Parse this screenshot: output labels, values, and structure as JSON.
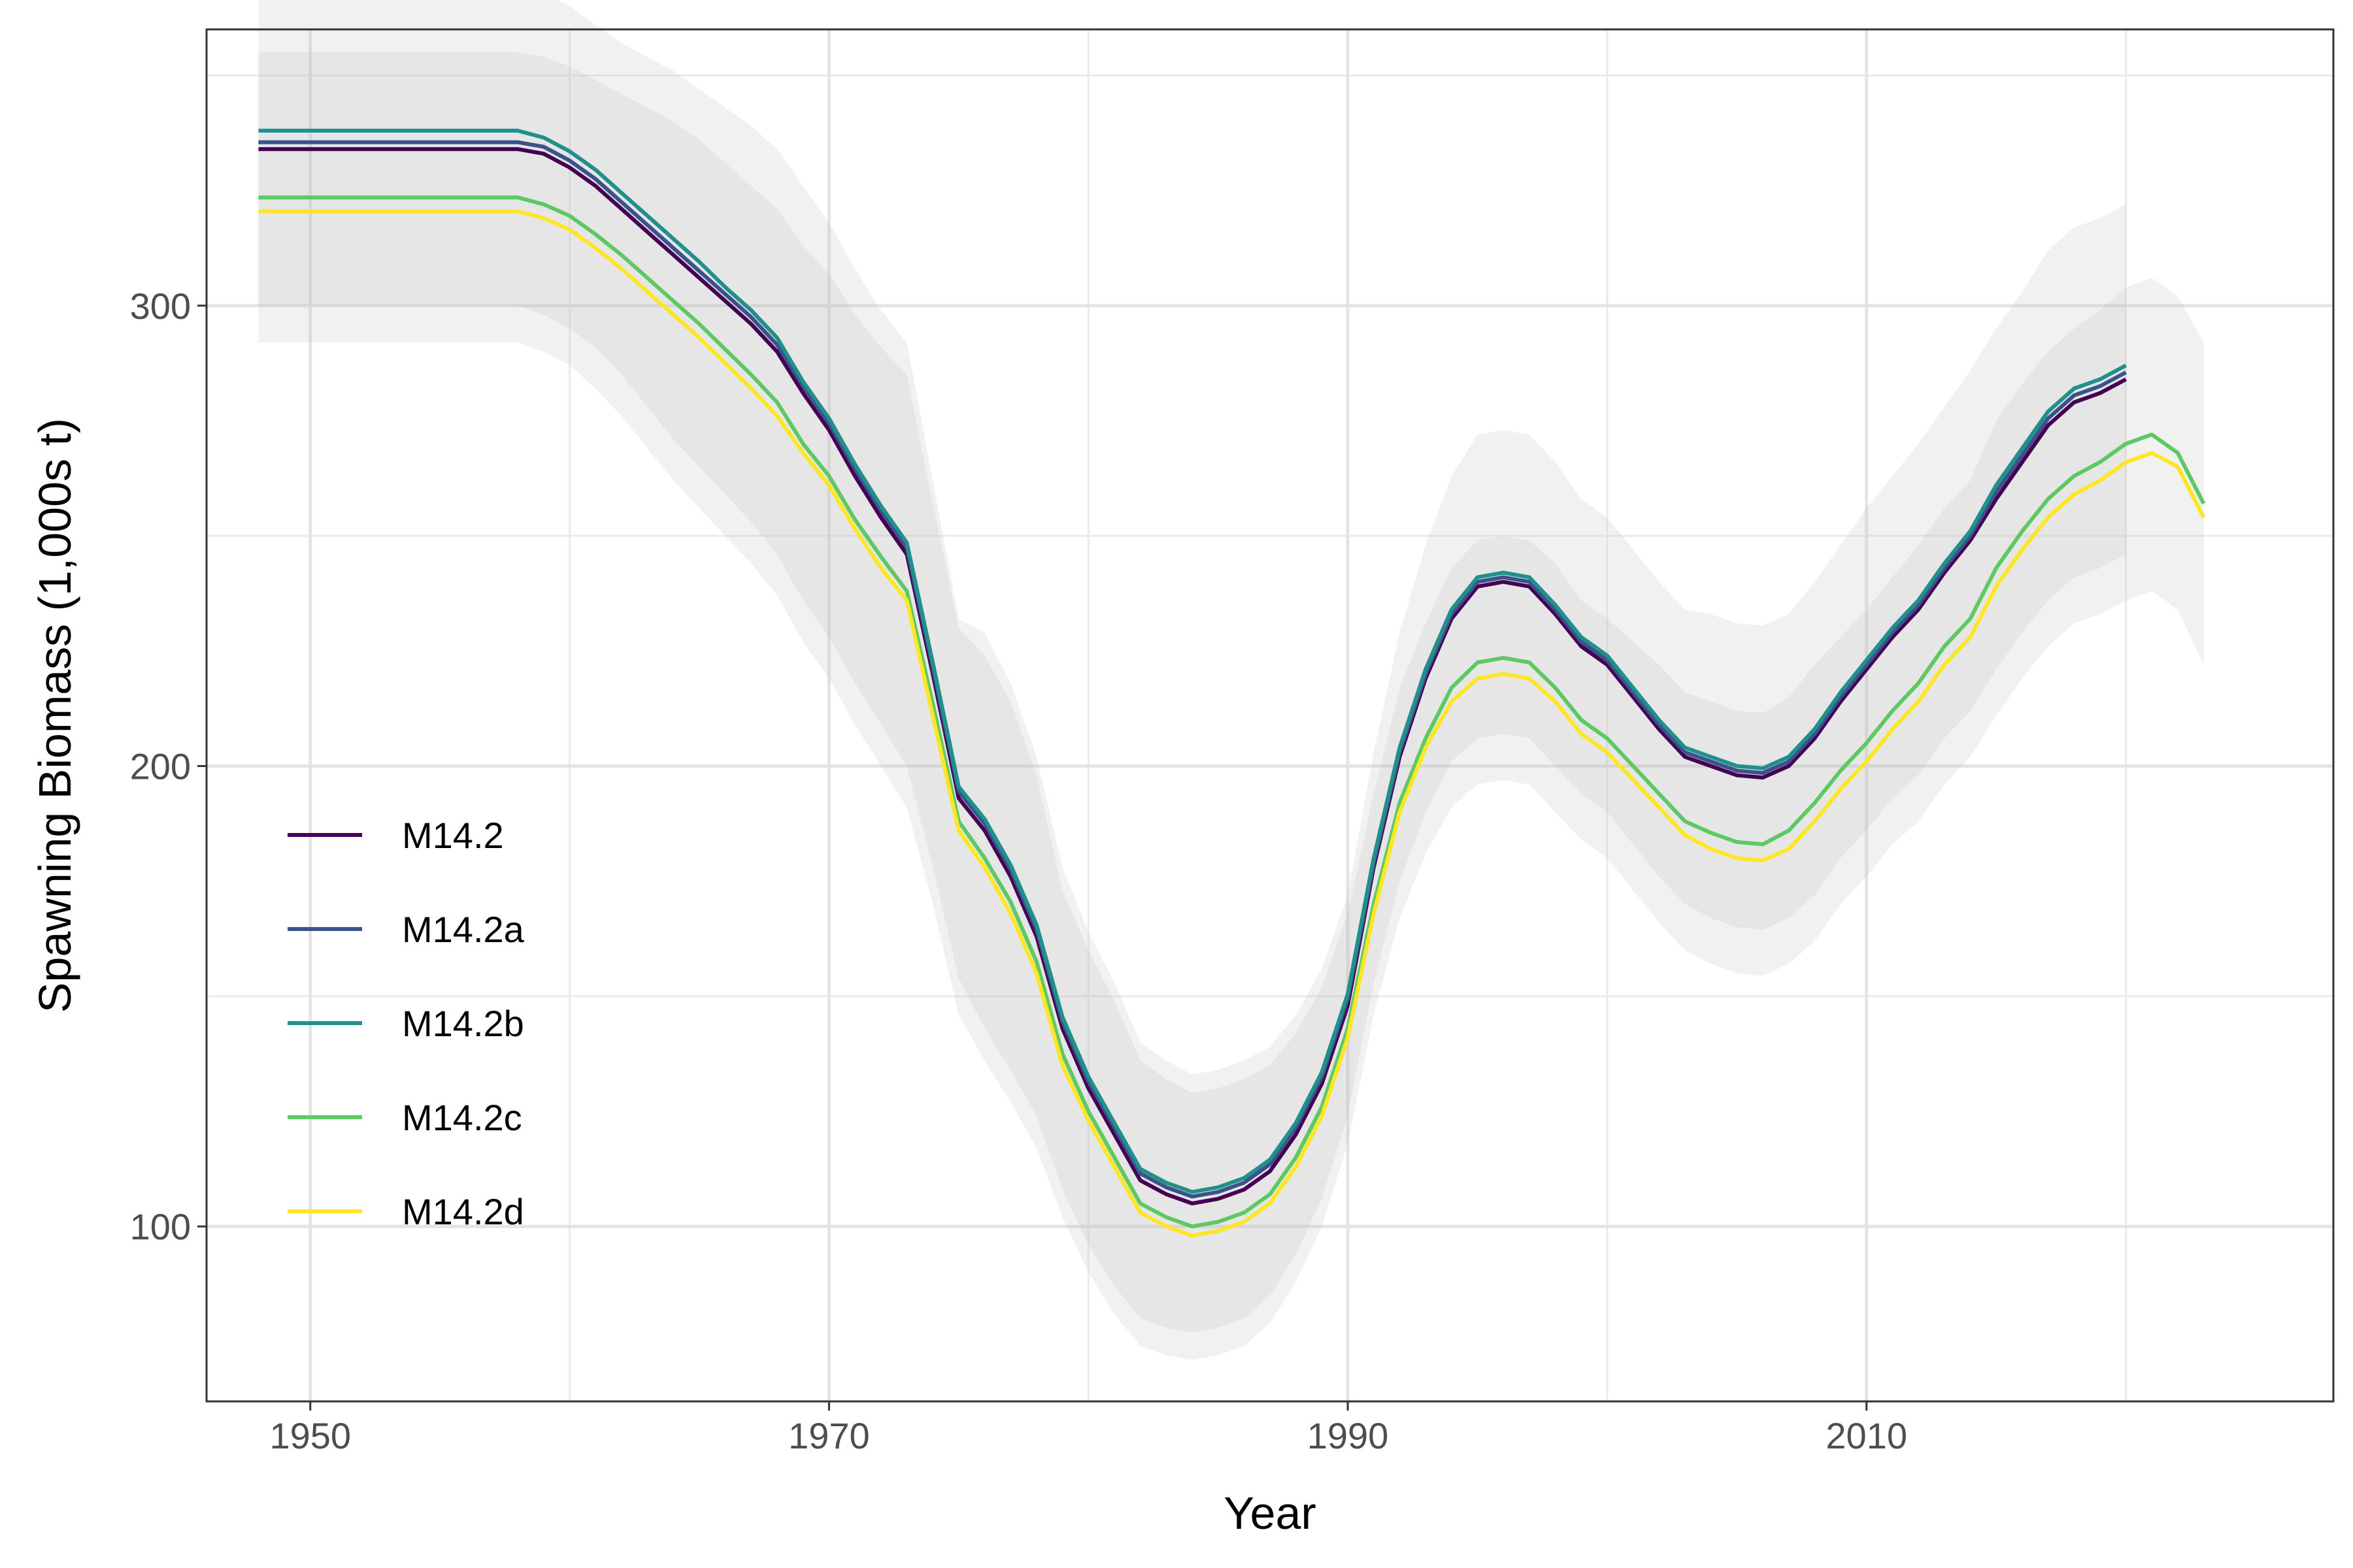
{
  "chart_data": {
    "type": "line",
    "xlabel": "Year",
    "ylabel": "Spawning Biomass (1,000s t)",
    "xlim": [
      1946,
      2028
    ],
    "ylim": [
      62,
      360
    ],
    "x_ticks": [
      1950,
      1970,
      1990,
      2010
    ],
    "x_tick_labels": [
      "1950",
      "1970",
      "1990",
      "2010"
    ],
    "x_minor_ticks": [
      1960,
      1980,
      2000,
      2020
    ],
    "y_ticks": [
      100,
      200,
      300
    ],
    "y_tick_labels": [
      "100",
      "200",
      "300"
    ],
    "y_minor_ticks": [
      150,
      250,
      350
    ],
    "grid": true,
    "legend_position": "bottom-left",
    "ribbon_color": "#bfbfbf",
    "series": [
      {
        "name": "M14.2",
        "color": "#440154",
        "x": [
          1948,
          1958,
          1959,
          1960,
          1961,
          1962,
          1963,
          1964,
          1965,
          1966,
          1967,
          1968,
          1969,
          1970,
          1971,
          1972,
          1973,
          1974,
          1975,
          1976,
          1977,
          1978,
          1979,
          1980,
          1981,
          1982,
          1983,
          1984,
          1985,
          1986,
          1987,
          1988,
          1989,
          1990,
          1991,
          1992,
          1993,
          1994,
          1995,
          1996,
          1997,
          1998,
          1999,
          2000,
          2001,
          2002,
          2003,
          2004,
          2005,
          2006,
          2007,
          2008,
          2009,
          2010,
          2011,
          2012,
          2013,
          2014,
          2015,
          2016,
          2017,
          2018,
          2019,
          2020
        ],
        "y": [
          334,
          334,
          333,
          330,
          326,
          321,
          316,
          311,
          306,
          301,
          296,
          290,
          281,
          273,
          263,
          254,
          246,
          220,
          193,
          186,
          176,
          163,
          143,
          130,
          120,
          110,
          107,
          105,
          106,
          108,
          112,
          120,
          131,
          148,
          178,
          202,
          219,
          232,
          239,
          240,
          239,
          233,
          226,
          222,
          215,
          208,
          202,
          200,
          198,
          197.5,
          200,
          206,
          214,
          221,
          228,
          234,
          242,
          249,
          258,
          266,
          274,
          279,
          281,
          284
        ],
        "lower": [
          300,
          300,
          298,
          295,
          291,
          285,
          278,
          271,
          265,
          259,
          253,
          246,
          236,
          228,
          218,
          209,
          200,
          178,
          154,
          143,
          134,
          124,
          108,
          96,
          87,
          80,
          78,
          77,
          78,
          80,
          85,
          94,
          106,
          124,
          153,
          175,
          190,
          201,
          206,
          207,
          206,
          200,
          194,
          190,
          183,
          176,
          170,
          167,
          165,
          164.5,
          167,
          172,
          180,
          186,
          193,
          198,
          206,
          212,
          221,
          229,
          236,
          241,
          243,
          246
        ],
        "upper": [
          368,
          368,
          368,
          365,
          361,
          357,
          354,
          351,
          347,
          343,
          339,
          334,
          326,
          318,
          308,
          299,
          292,
          262,
          232,
          229,
          218,
          202,
          178,
          164,
          153,
          140,
          136,
          133,
          134,
          136,
          139,
          146,
          156,
          172,
          203,
          229,
          248,
          263,
          272,
          273,
          272,
          266,
          258,
          254,
          247,
          240,
          234,
          233,
          231,
          230.5,
          233,
          240,
          248,
          256,
          263,
          270,
          278,
          286,
          295,
          303,
          312,
          317,
          319,
          322
        ]
      },
      {
        "name": "M14.2a",
        "color": "#3b528b",
        "x": [
          1948,
          1958,
          1959,
          1960,
          1961,
          1962,
          1963,
          1964,
          1965,
          1966,
          1967,
          1968,
          1969,
          1970,
          1971,
          1972,
          1973,
          1974,
          1975,
          1976,
          1977,
          1978,
          1979,
          1980,
          1981,
          1982,
          1983,
          1984,
          1985,
          1986,
          1987,
          1988,
          1989,
          1990,
          1991,
          1992,
          1993,
          1994,
          1995,
          1996,
          1997,
          1998,
          1999,
          2000,
          2001,
          2002,
          2003,
          2004,
          2005,
          2006,
          2007,
          2008,
          2009,
          2010,
          2011,
          2012,
          2013,
          2014,
          2015,
          2016,
          2017,
          2018,
          2019,
          2020
        ],
        "y": [
          335.5,
          335.5,
          334.5,
          331.5,
          327.5,
          322.5,
          317.5,
          312.5,
          307.5,
          302.5,
          297.5,
          291.5,
          282.5,
          274.5,
          264.5,
          255.5,
          247.5,
          221.5,
          194.5,
          187.5,
          177.5,
          164.5,
          144.5,
          131.5,
          121.5,
          111.5,
          108.5,
          106.5,
          107.5,
          109.5,
          113.5,
          121.5,
          132.5,
          149.5,
          179,
          203,
          220,
          233,
          240,
          241,
          240,
          234,
          227,
          223,
          216,
          209,
          203,
          201,
          199,
          198.5,
          201,
          207,
          215,
          222,
          229,
          235,
          243,
          250,
          259.5,
          267.5,
          275.5,
          280.5,
          282.5,
          285.5
        ]
      },
      {
        "name": "M14.2b",
        "color": "#21908c",
        "x": [
          1948,
          1958,
          1959,
          1960,
          1961,
          1962,
          1963,
          1964,
          1965,
          1966,
          1967,
          1968,
          1969,
          1970,
          1971,
          1972,
          1973,
          1974,
          1975,
          1976,
          1977,
          1978,
          1979,
          1980,
          1981,
          1982,
          1983,
          1984,
          1985,
          1986,
          1987,
          1988,
          1989,
          1990,
          1991,
          1992,
          1993,
          1994,
          1995,
          1996,
          1997,
          1998,
          1999,
          2000,
          2001,
          2002,
          2003,
          2004,
          2005,
          2006,
          2007,
          2008,
          2009,
          2010,
          2011,
          2012,
          2013,
          2014,
          2015,
          2016,
          2017,
          2018,
          2019,
          2020
        ],
        "y": [
          338,
          338,
          336.5,
          333.5,
          329.5,
          324.5,
          319.5,
          314.5,
          309.5,
          304,
          299,
          293,
          283.5,
          275.5,
          265.5,
          256.5,
          248.5,
          222.5,
          195.5,
          188.5,
          178.5,
          165.5,
          145.5,
          132.5,
          122.5,
          112.5,
          109.5,
          107.5,
          108.5,
          110.5,
          114.5,
          122.5,
          133.5,
          150.5,
          180,
          204,
          221,
          234,
          241,
          242,
          241,
          235,
          228,
          224,
          217,
          210,
          204,
          202,
          200,
          199.5,
          202,
          208,
          216,
          223,
          230,
          236,
          244,
          251,
          261,
          269,
          277,
          282,
          284,
          287
        ]
      },
      {
        "name": "M14.2c",
        "color": "#5ec962",
        "x": [
          1948,
          1958,
          1959,
          1960,
          1961,
          1962,
          1963,
          1964,
          1965,
          1966,
          1967,
          1968,
          1969,
          1970,
          1971,
          1972,
          1973,
          1974,
          1975,
          1976,
          1977,
          1978,
          1979,
          1980,
          1981,
          1982,
          1983,
          1984,
          1985,
          1986,
          1987,
          1988,
          1989,
          1990,
          1991,
          1992,
          1993,
          1994,
          1995,
          1996,
          1997,
          1998,
          1999,
          2000,
          2001,
          2002,
          2003,
          2004,
          2005,
          2006,
          2007,
          2008,
          2009,
          2010,
          2011,
          2012,
          2013,
          2014,
          2015,
          2016,
          2017,
          2018,
          2019,
          2020,
          2021,
          2022,
          2023
        ],
        "y": [
          323.5,
          323.5,
          322,
          319.5,
          315.5,
          311,
          306,
          301,
          296,
          290.5,
          285,
          279,
          270,
          263,
          253.5,
          245.5,
          238,
          213.5,
          188,
          180,
          170.5,
          157.5,
          137.5,
          125,
          115,
          105,
          102,
          100,
          101,
          103,
          107,
          115,
          126,
          143,
          170,
          192,
          206,
          217,
          222.5,
          223.5,
          222.5,
          217,
          210,
          206,
          200,
          194,
          188,
          185.5,
          183.5,
          183,
          186,
          192,
          199,
          205,
          212,
          218,
          226,
          232,
          243,
          251,
          258,
          263,
          266,
          270,
          272,
          268,
          257
        ],
        "lower": [
          292,
          292,
          290,
          287,
          282,
          276,
          269,
          262,
          256,
          250,
          244,
          237,
          227,
          219,
          209,
          200,
          191,
          170,
          146,
          136,
          127,
          117,
          102,
          90,
          81,
          74,
          72,
          71,
          72,
          74,
          79,
          88,
          100,
          118,
          146,
          167,
          181,
          191,
          196,
          197,
          196,
          190,
          184,
          180,
          173,
          166,
          160,
          157,
          155,
          154.5,
          157,
          162,
          170,
          176,
          183,
          188,
          196,
          202,
          211,
          219,
          226,
          231,
          233,
          236,
          238,
          234,
          222
        ],
        "upper": [
          355,
          355,
          354,
          352,
          349,
          346,
          343,
          340,
          336,
          331,
          326,
          321,
          313,
          307,
          298,
          291,
          285,
          257,
          230,
          224,
          214,
          198,
          173,
          160,
          149,
          136,
          132,
          129,
          130,
          132,
          135,
          142,
          152,
          168,
          194,
          217,
          231,
          243,
          249,
          250,
          249,
          244,
          236,
          232,
          227,
          222,
          216,
          214,
          212,
          211.5,
          215,
          222,
          228,
          234,
          241,
          248,
          256,
          262,
          275,
          283,
          290,
          295,
          299,
          304,
          306,
          302,
          292
        ]
      },
      {
        "name": "M14.2d",
        "color": "#fde725",
        "x": [
          1948,
          1958,
          1959,
          1960,
          1961,
          1962,
          1963,
          1964,
          1965,
          1966,
          1967,
          1968,
          1969,
          1970,
          1971,
          1972,
          1973,
          1974,
          1975,
          1976,
          1977,
          1978,
          1979,
          1980,
          1981,
          1982,
          1983,
          1984,
          1985,
          1986,
          1987,
          1988,
          1989,
          1990,
          1991,
          1992,
          1993,
          1994,
          1995,
          1996,
          1997,
          1998,
          1999,
          2000,
          2001,
          2002,
          2003,
          2004,
          2005,
          2006,
          2007,
          2008,
          2009,
          2010,
          2011,
          2012,
          2013,
          2014,
          2015,
          2016,
          2017,
          2018,
          2019,
          2020,
          2021,
          2022,
          2023
        ],
        "y": [
          320.5,
          320.5,
          319,
          316.5,
          312.5,
          308,
          303,
          298,
          293,
          287.5,
          282,
          276,
          268,
          261,
          251.5,
          243,
          236,
          211,
          186,
          178,
          168,
          155,
          135,
          123,
          113,
          103,
          100,
          98,
          99,
          101,
          105,
          113,
          124,
          141,
          168,
          190,
          204,
          214,
          219,
          220,
          219,
          214,
          207,
          203,
          197,
          191,
          185,
          182,
          180,
          179.5,
          182,
          188,
          195,
          201,
          208,
          214,
          222,
          228,
          239,
          247,
          254,
          259,
          262,
          266,
          268,
          265,
          254
        ]
      }
    ]
  }
}
